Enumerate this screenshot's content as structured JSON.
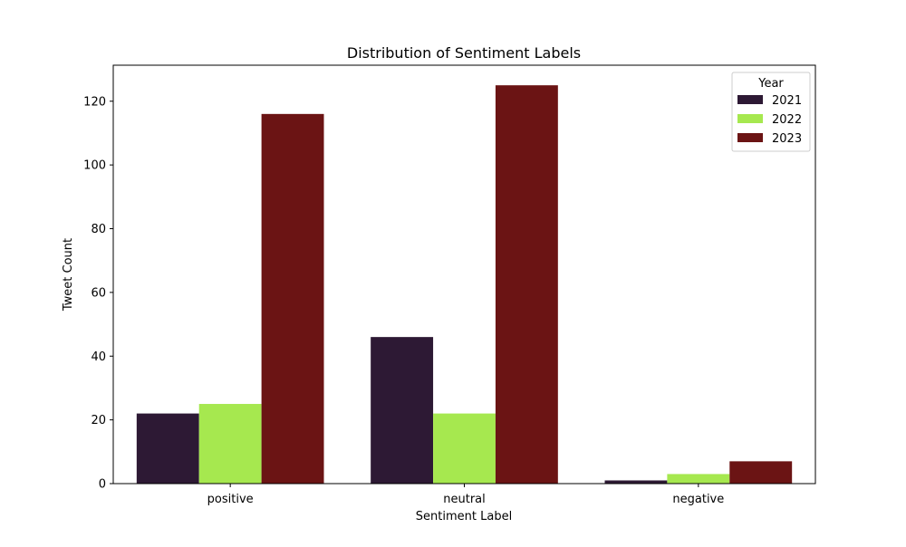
{
  "chart_data": {
    "type": "bar",
    "title": "Distribution of Sentiment Labels",
    "xlabel": "Sentiment Label",
    "ylabel": "Tweet Count",
    "categories": [
      "positive",
      "neutral",
      "negative"
    ],
    "series": [
      {
        "name": "2021",
        "values": [
          22,
          46,
          1
        ],
        "color": "#2d1934"
      },
      {
        "name": "2022",
        "values": [
          25,
          22,
          3
        ],
        "color": "#a6e84f"
      },
      {
        "name": "2023",
        "values": [
          116,
          125,
          7
        ],
        "color": "#6b1414"
      }
    ],
    "ylim": [
      0,
      131.3
    ],
    "yticks": [
      0,
      20,
      40,
      60,
      80,
      100,
      120
    ],
    "grid": false,
    "legend": {
      "title": "Year",
      "placement": "upper right"
    }
  }
}
